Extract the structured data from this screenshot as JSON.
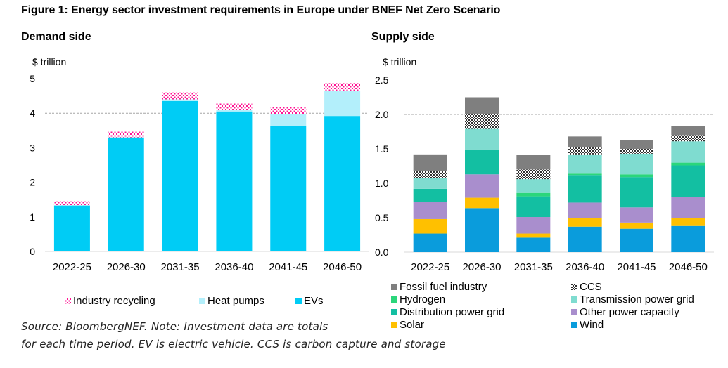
{
  "figure_title": "Figure 1: Energy sector investment requirements in Europe under BNEF Net Zero Scenario",
  "source_line1": "Source: BloombergNEF. Note: Investment data are totals",
  "source_line2": "for each time period. EV is electric vehicle. CCS is carbon capture and storage",
  "colors": {
    "ev": "#00CCF5",
    "heat_pumps": "#B3EFFB",
    "industry_recycling": "#FF1493",
    "fossil": "#7F7F7F",
    "ccs": "#303030",
    "hydrogen": "#2BD67B",
    "transmission": "#7FDCD0",
    "distribution": "#13BFA2",
    "other_power": "#A98ECD",
    "solar": "#FFC000",
    "wind": "#0A9CDC",
    "gridline": "#A6A6A6"
  },
  "chart_data": [
    {
      "id": "demand",
      "type": "bar",
      "stacked": true,
      "title": "Demand side",
      "ylabel": "$ trillion",
      "ylim": [
        0,
        5
      ],
      "yticks": [
        "0",
        "1",
        "2",
        "3",
        "4",
        "5"
      ],
      "ytick_values": [
        0,
        1,
        2,
        3,
        4,
        5
      ],
      "dashed_gridline": 4,
      "categories": [
        "2022-25",
        "2026-30",
        "2031-35",
        "2036-40",
        "2041-45",
        "2046-50"
      ],
      "series": [
        {
          "name": "EVs",
          "key": "ev",
          "values": [
            1.33,
            3.3,
            4.35,
            4.05,
            3.62,
            3.92
          ]
        },
        {
          "name": "Heat pumps",
          "key": "heat_pumps",
          "values": [
            0.0,
            0.0,
            0.05,
            0.05,
            0.35,
            0.73
          ]
        },
        {
          "name": "Industry recycling",
          "key": "industry_recycling",
          "pattern": true,
          "values": [
            0.12,
            0.17,
            0.2,
            0.2,
            0.2,
            0.22
          ]
        }
      ],
      "legend": [
        {
          "label": "Industry recycling",
          "key": "industry_recycling",
          "pattern": true
        },
        {
          "label": "Heat pumps",
          "key": "heat_pumps"
        },
        {
          "label": "EVs",
          "key": "ev"
        }
      ]
    },
    {
      "id": "supply",
      "type": "bar",
      "stacked": true,
      "title": "Supply side",
      "ylabel": "$ trillion",
      "ylim": [
        0,
        2.5
      ],
      "yticks": [
        "0.0",
        "0.5",
        "1.0",
        "1.5",
        "2.0",
        "2.5"
      ],
      "ytick_values": [
        0,
        0.5,
        1.0,
        1.5,
        2.0,
        2.5
      ],
      "dashed_gridline": 2.0,
      "categories": [
        "2022-25",
        "2026-30",
        "2031-35",
        "2036-40",
        "2041-45",
        "2046-50"
      ],
      "series": [
        {
          "name": "Wind",
          "key": "wind",
          "values": [
            0.27,
            0.64,
            0.21,
            0.37,
            0.34,
            0.38
          ]
        },
        {
          "name": "Solar",
          "key": "solar",
          "values": [
            0.21,
            0.15,
            0.06,
            0.12,
            0.09,
            0.11
          ]
        },
        {
          "name": "Other power capacity",
          "key": "other_power",
          "values": [
            0.25,
            0.34,
            0.24,
            0.23,
            0.22,
            0.31
          ]
        },
        {
          "name": "Distribution power grid",
          "key": "distribution",
          "values": [
            0.19,
            0.36,
            0.3,
            0.4,
            0.44,
            0.46
          ]
        },
        {
          "name": "Hydrogen",
          "key": "hydrogen",
          "values": [
            0.0,
            0.0,
            0.05,
            0.02,
            0.04,
            0.04
          ]
        },
        {
          "name": "Transmission power grid",
          "key": "transmission",
          "values": [
            0.16,
            0.31,
            0.2,
            0.28,
            0.3,
            0.31
          ]
        },
        {
          "name": "CCS",
          "key": "ccs",
          "pattern": true,
          "values": [
            0.1,
            0.2,
            0.14,
            0.1,
            0.07,
            0.09
          ]
        },
        {
          "name": "Fossil fuel industry",
          "key": "fossil",
          "values": [
            0.24,
            0.25,
            0.21,
            0.16,
            0.13,
            0.13
          ]
        }
      ],
      "legend": [
        {
          "label": "Fossil fuel industry",
          "key": "fossil"
        },
        {
          "label": "CCS",
          "key": "ccs",
          "pattern": true
        },
        {
          "label": "Hydrogen",
          "key": "hydrogen"
        },
        {
          "label": "Transmission power grid",
          "key": "transmission"
        },
        {
          "label": "Distribution power grid",
          "key": "distribution"
        },
        {
          "label": "Other power capacity",
          "key": "other_power"
        },
        {
          "label": "Solar",
          "key": "solar"
        },
        {
          "label": "Wind",
          "key": "wind"
        }
      ]
    }
  ]
}
